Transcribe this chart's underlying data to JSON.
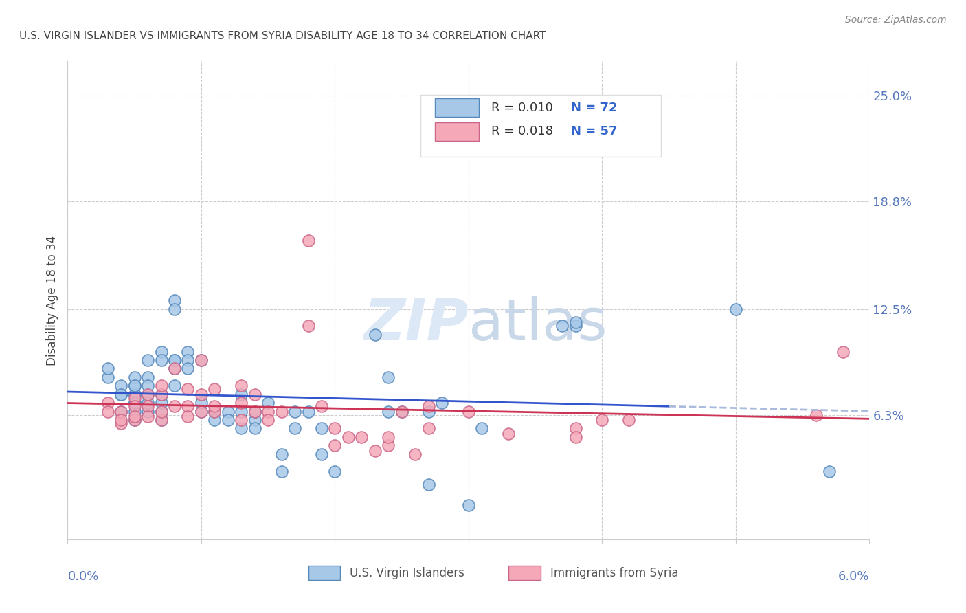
{
  "title": "U.S. VIRGIN ISLANDER VS IMMIGRANTS FROM SYRIA DISABILITY AGE 18 TO 34 CORRELATION CHART",
  "source": "Source: ZipAtlas.com",
  "ylabel": "Disability Age 18 to 34",
  "ytick_labels": [
    "6.3%",
    "12.5%",
    "18.8%",
    "25.0%"
  ],
  "ytick_values": [
    0.063,
    0.125,
    0.188,
    0.25
  ],
  "xlim": [
    0.0,
    0.06
  ],
  "ylim": [
    -0.01,
    0.27
  ],
  "series1_label": "U.S. Virgin Islanders",
  "series2_label": "Immigrants from Syria",
  "series1_R": "0.010",
  "series1_N": "72",
  "series2_R": "0.018",
  "series2_N": "57",
  "series1_color": "#a8c8e8",
  "series2_color": "#f4a8b8",
  "series1_edge": "#5588bb",
  "series2_edge": "#cc6688",
  "trendline1_color": "#3355cc",
  "trendline2_color": "#cc3355",
  "trendline1_dashed_color": "#aabbdd",
  "background_color": "#ffffff",
  "title_color": "#444444",
  "axis_label_color": "#5577bb",
  "watermark_color": "#dce8f5",
  "legend_R_color": "#3366cc",
  "legend_N_color": "#3366cc",
  "series1_x": [
    0.003,
    0.003,
    0.004,
    0.004,
    0.004,
    0.004,
    0.005,
    0.005,
    0.005,
    0.005,
    0.005,
    0.005,
    0.005,
    0.005,
    0.005,
    0.006,
    0.006,
    0.006,
    0.006,
    0.006,
    0.006,
    0.007,
    0.007,
    0.007,
    0.007,
    0.007,
    0.007,
    0.008,
    0.008,
    0.008,
    0.008,
    0.008,
    0.008,
    0.009,
    0.009,
    0.009,
    0.01,
    0.01,
    0.01,
    0.011,
    0.011,
    0.012,
    0.012,
    0.013,
    0.013,
    0.013,
    0.014,
    0.014,
    0.014,
    0.015,
    0.016,
    0.016,
    0.017,
    0.017,
    0.018,
    0.019,
    0.019,
    0.02,
    0.023,
    0.024,
    0.024,
    0.025,
    0.027,
    0.027,
    0.028,
    0.03,
    0.031,
    0.037,
    0.038,
    0.038,
    0.05,
    0.057
  ],
  "series1_y": [
    0.085,
    0.09,
    0.075,
    0.08,
    0.065,
    0.075,
    0.065,
    0.07,
    0.075,
    0.06,
    0.08,
    0.085,
    0.075,
    0.07,
    0.08,
    0.085,
    0.075,
    0.065,
    0.07,
    0.08,
    0.095,
    0.1,
    0.095,
    0.065,
    0.06,
    0.07,
    0.075,
    0.09,
    0.13,
    0.095,
    0.095,
    0.125,
    0.08,
    0.1,
    0.095,
    0.09,
    0.065,
    0.095,
    0.07,
    0.065,
    0.06,
    0.065,
    0.06,
    0.055,
    0.065,
    0.075,
    0.06,
    0.065,
    0.055,
    0.07,
    0.04,
    0.03,
    0.065,
    0.055,
    0.065,
    0.055,
    0.04,
    0.03,
    0.11,
    0.085,
    0.065,
    0.065,
    0.022,
    0.065,
    0.07,
    0.01,
    0.055,
    0.115,
    0.115,
    0.117,
    0.125,
    0.03
  ],
  "series2_x": [
    0.003,
    0.003,
    0.004,
    0.004,
    0.004,
    0.005,
    0.005,
    0.005,
    0.005,
    0.006,
    0.006,
    0.006,
    0.007,
    0.007,
    0.007,
    0.007,
    0.008,
    0.008,
    0.009,
    0.009,
    0.009,
    0.01,
    0.01,
    0.01,
    0.011,
    0.011,
    0.011,
    0.013,
    0.013,
    0.013,
    0.014,
    0.014,
    0.015,
    0.015,
    0.016,
    0.018,
    0.018,
    0.019,
    0.02,
    0.02,
    0.021,
    0.022,
    0.023,
    0.024,
    0.024,
    0.025,
    0.026,
    0.027,
    0.027,
    0.03,
    0.033,
    0.038,
    0.038,
    0.04,
    0.042,
    0.056,
    0.058
  ],
  "series2_y": [
    0.07,
    0.065,
    0.065,
    0.058,
    0.06,
    0.06,
    0.073,
    0.068,
    0.062,
    0.075,
    0.068,
    0.062,
    0.06,
    0.075,
    0.065,
    0.08,
    0.09,
    0.068,
    0.068,
    0.078,
    0.062,
    0.065,
    0.075,
    0.095,
    0.065,
    0.078,
    0.068,
    0.08,
    0.07,
    0.06,
    0.075,
    0.065,
    0.065,
    0.06,
    0.065,
    0.115,
    0.165,
    0.068,
    0.045,
    0.055,
    0.05,
    0.05,
    0.042,
    0.045,
    0.05,
    0.065,
    0.04,
    0.068,
    0.055,
    0.065,
    0.052,
    0.055,
    0.05,
    0.06,
    0.06,
    0.063,
    0.1
  ]
}
